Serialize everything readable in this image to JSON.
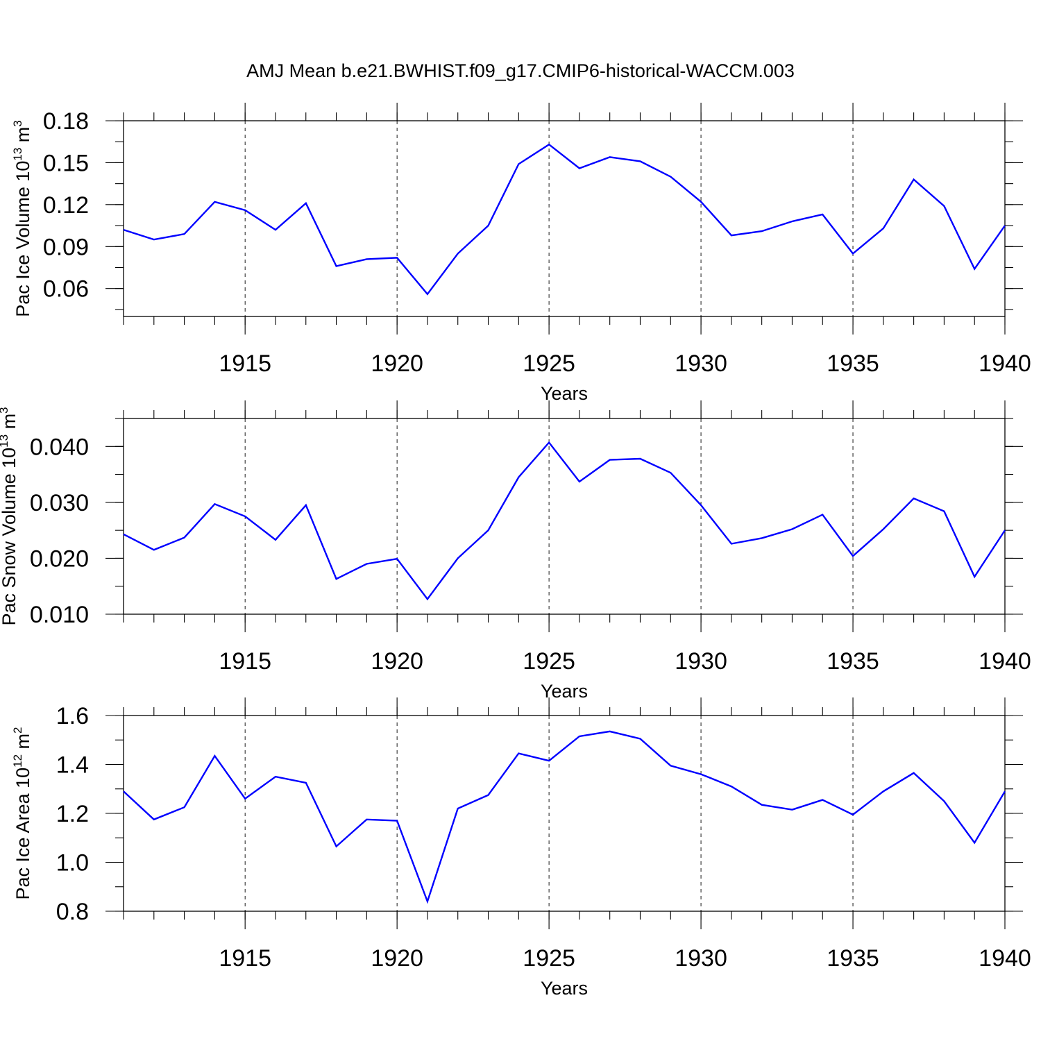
{
  "title": "AMJ Mean b.e21.BWHIST.f09_g17.CMIP6-historical-WACCM.003",
  "chart_data": [
    {
      "type": "line",
      "ylabel": {
        "main": "Pac Ice Volume 10",
        "sup": "13",
        "unit": " m",
        "unit_sup": "3"
      },
      "xlabel": "Years",
      "xlim": [
        1911,
        1940
      ],
      "ylim": [
        0.04,
        0.18
      ],
      "xticks": [
        1915,
        1920,
        1925,
        1930,
        1935,
        1940
      ],
      "yticks": [
        0.06,
        0.09,
        0.12,
        0.15,
        0.18
      ],
      "ytick_labels": [
        "0.06",
        "0.09",
        "0.12",
        "0.15",
        "0.18"
      ],
      "grid_x": [
        1915,
        1920,
        1925,
        1930,
        1935
      ],
      "series": [
        {
          "name": "Pac Ice Volume",
          "color": "#0000ff",
          "x": [
            1911,
            1912,
            1913,
            1914,
            1915,
            1916,
            1917,
            1918,
            1919,
            1920,
            1921,
            1922,
            1923,
            1924,
            1925,
            1926,
            1927,
            1928,
            1929,
            1930,
            1931,
            1932,
            1933,
            1934,
            1935,
            1936,
            1937,
            1938,
            1939,
            1940
          ],
          "values": [
            0.102,
            0.095,
            0.099,
            0.122,
            0.116,
            0.102,
            0.121,
            0.076,
            0.081,
            0.082,
            0.056,
            0.085,
            0.105,
            0.149,
            0.163,
            0.146,
            0.154,
            0.151,
            0.14,
            0.122,
            0.098,
            0.101,
            0.108,
            0.113,
            0.085,
            0.103,
            0.138,
            0.119,
            0.074,
            0.105
          ]
        }
      ]
    },
    {
      "type": "line",
      "ylabel": {
        "main": "Pac Snow Volume 10",
        "sup": "13",
        "unit": " m",
        "unit_sup": "3"
      },
      "xlabel": "Years",
      "xlim": [
        1911,
        1940
      ],
      "ylim": [
        0.01,
        0.045
      ],
      "xticks": [
        1915,
        1920,
        1925,
        1930,
        1935,
        1940
      ],
      "yticks": [
        0.01,
        0.02,
        0.03,
        0.04
      ],
      "ytick_labels": [
        "0.010",
        "0.020",
        "0.030",
        "0.040"
      ],
      "grid_x": [
        1915,
        1920,
        1925,
        1930,
        1935
      ],
      "series": [
        {
          "name": "Pac Snow Volume",
          "color": "#0000ff",
          "x": [
            1911,
            1912,
            1913,
            1914,
            1915,
            1916,
            1917,
            1918,
            1919,
            1920,
            1921,
            1922,
            1923,
            1924,
            1925,
            1926,
            1927,
            1928,
            1929,
            1930,
            1931,
            1932,
            1933,
            1934,
            1935,
            1936,
            1937,
            1938,
            1939,
            1940
          ],
          "values": [
            0.0243,
            0.0215,
            0.0237,
            0.0297,
            0.0275,
            0.0233,
            0.0295,
            0.0163,
            0.019,
            0.0199,
            0.0127,
            0.02,
            0.025,
            0.0345,
            0.0407,
            0.0337,
            0.0376,
            0.0378,
            0.0353,
            0.0295,
            0.0226,
            0.0236,
            0.0252,
            0.0278,
            0.0204,
            0.0252,
            0.0307,
            0.0284,
            0.0167,
            0.025
          ]
        }
      ]
    },
    {
      "type": "line",
      "ylabel": {
        "main": "Pac Ice Area 10",
        "sup": "12",
        "unit": " m",
        "unit_sup": "2"
      },
      "xlabel": "Years",
      "xlim": [
        1911,
        1940
      ],
      "ylim": [
        0.8,
        1.6
      ],
      "xticks": [
        1915,
        1920,
        1925,
        1930,
        1935,
        1940
      ],
      "yticks": [
        0.8,
        1.0,
        1.2,
        1.4,
        1.6
      ],
      "ytick_labels": [
        "0.8",
        "1.0",
        "1.2",
        "1.4",
        "1.6"
      ],
      "grid_x": [
        1915,
        1920,
        1925,
        1930,
        1935
      ],
      "series": [
        {
          "name": "Pac Ice Area",
          "color": "#0000ff",
          "x": [
            1911,
            1912,
            1913,
            1914,
            1915,
            1916,
            1917,
            1918,
            1919,
            1920,
            1921,
            1922,
            1923,
            1924,
            1925,
            1926,
            1927,
            1928,
            1929,
            1930,
            1931,
            1932,
            1933,
            1934,
            1935,
            1936,
            1937,
            1938,
            1939,
            1940
          ],
          "values": [
            1.29,
            1.175,
            1.225,
            1.435,
            1.26,
            1.35,
            1.325,
            1.065,
            1.175,
            1.17,
            0.84,
            1.22,
            1.275,
            1.445,
            1.415,
            1.515,
            1.535,
            1.505,
            1.395,
            1.36,
            1.31,
            1.235,
            1.215,
            1.255,
            1.195,
            1.29,
            1.365,
            1.25,
            1.08,
            1.29
          ]
        }
      ]
    }
  ]
}
